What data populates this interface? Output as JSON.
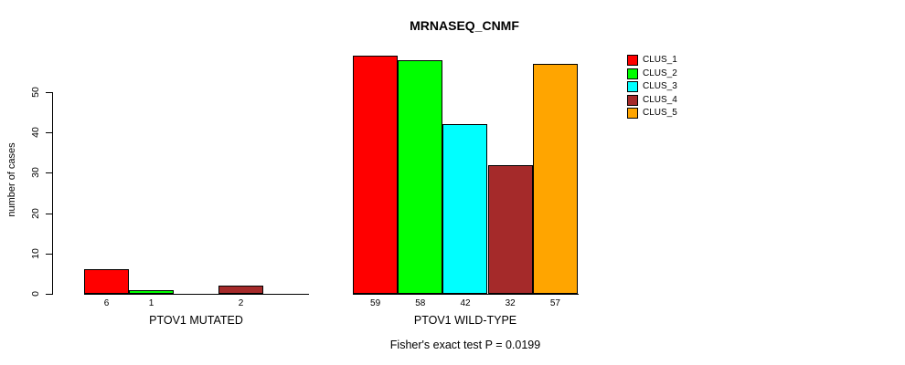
{
  "chart_data": {
    "type": "bar",
    "title": "MRNASEQ_CNMF",
    "ylabel": "number of cases",
    "yticks": [
      0,
      10,
      20,
      30,
      40,
      50
    ],
    "ylim": [
      0,
      59
    ],
    "grid": false,
    "legend_position": "right",
    "legend": [
      {
        "name": "CLUS_1",
        "color": "#FF0000"
      },
      {
        "name": "CLUS_2",
        "color": "#00FF00"
      },
      {
        "name": "CLUS_3",
        "color": "#00FFFF"
      },
      {
        "name": "CLUS_4",
        "color": "#A52A2A"
      },
      {
        "name": "CLUS_5",
        "color": "#FFA500"
      }
    ],
    "groups": [
      {
        "label": "PTOV1 MUTATED",
        "values": [
          6,
          1,
          0,
          2,
          0
        ],
        "bar_labels": [
          "6",
          "1",
          "",
          "2",
          ""
        ]
      },
      {
        "label": "PTOV1 WILD-TYPE",
        "values": [
          59,
          58,
          42,
          32,
          57
        ],
        "bar_labels": [
          "59",
          "58",
          "42",
          "32",
          "57"
        ]
      }
    ],
    "footer": "Fisher's exact test P = 0.0199"
  }
}
